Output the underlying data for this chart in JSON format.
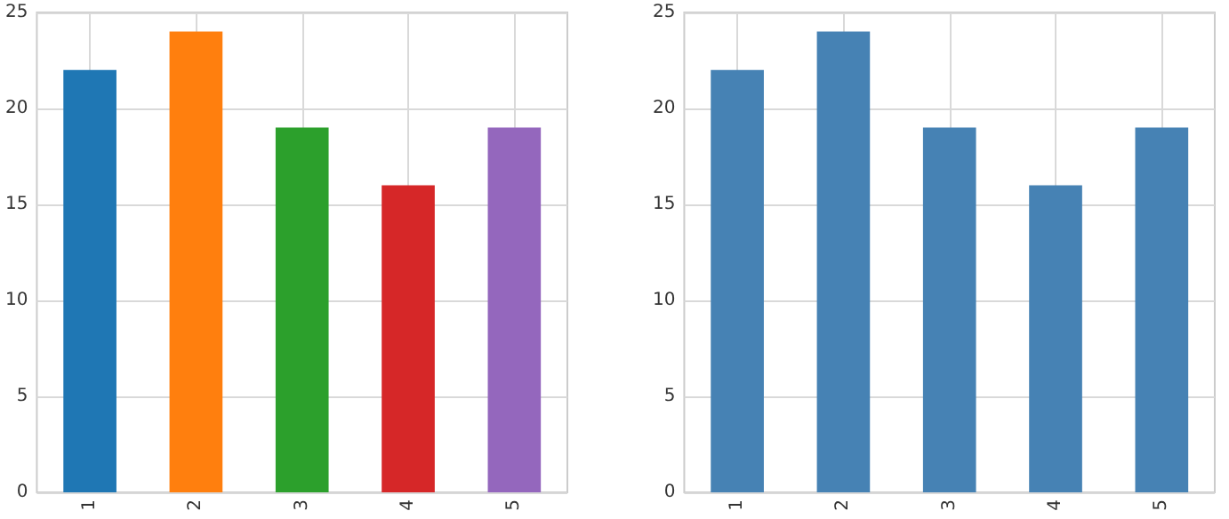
{
  "chart_data": [
    {
      "type": "bar",
      "categories": [
        "1",
        "2",
        "3",
        "4",
        "5"
      ],
      "values": [
        22,
        24,
        19,
        16,
        19
      ],
      "colors": [
        "#1f77b4",
        "#ff7f0e",
        "#2ca02c",
        "#d62728",
        "#9467bd"
      ],
      "ylim": [
        0,
        25
      ],
      "yticks": [
        0,
        5,
        10,
        15,
        20,
        25
      ],
      "grid": true
    },
    {
      "type": "bar",
      "categories": [
        "1",
        "2",
        "3",
        "4",
        "5"
      ],
      "values": [
        22,
        24,
        19,
        16,
        19
      ],
      "color": "#4682b4",
      "ylim": [
        0,
        25
      ],
      "yticks": [
        0,
        5,
        10,
        15,
        20,
        25
      ],
      "grid": true
    }
  ]
}
